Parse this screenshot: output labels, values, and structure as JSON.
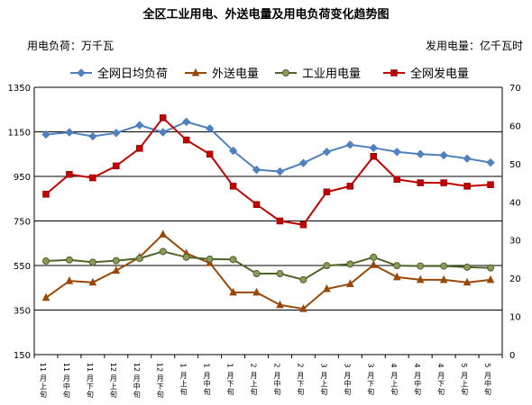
{
  "chart_data": {
    "type": "line",
    "title": "全区工业用电、外送电量及用电负荷变化趋势图",
    "left_axis_label": "用电负荷：万千瓦",
    "right_axis_label": "发用电量：亿千瓦时",
    "categories": [
      "11月上旬",
      "11月中旬",
      "11月下旬",
      "12月上旬",
      "12月中旬",
      "12月下旬",
      "1月上旬",
      "1月中旬",
      "1月下旬",
      "2月上旬",
      "2月中旬",
      "2月下旬",
      "3月上旬",
      "3月中旬",
      "3月下旬",
      "4月上旬",
      "4月中旬",
      "4月下旬",
      "5月上旬",
      "5月中旬"
    ],
    "category_lines": [
      [
        "11",
        "月",
        "上",
        "旬"
      ],
      [
        "11",
        "月",
        "中",
        "旬"
      ],
      [
        "11",
        "月",
        "下",
        "旬"
      ],
      [
        "12",
        "月",
        "上",
        "旬"
      ],
      [
        "12",
        "月",
        "中",
        "旬"
      ],
      [
        "12",
        "月",
        "下",
        "旬"
      ],
      [
        "1",
        "月",
        "上",
        "旬"
      ],
      [
        "1",
        "月",
        "中",
        "旬"
      ],
      [
        "1",
        "月",
        "下",
        "旬"
      ],
      [
        "2",
        "月",
        "上",
        "旬"
      ],
      [
        "2",
        "月",
        "中",
        "旬"
      ],
      [
        "2",
        "月",
        "下",
        "旬"
      ],
      [
        "3",
        "月",
        "上",
        "旬"
      ],
      [
        "3",
        "月",
        "中",
        "旬"
      ],
      [
        "3",
        "月",
        "下",
        "旬"
      ],
      [
        "4",
        "月",
        "上",
        "旬"
      ],
      [
        "4",
        "月",
        "中",
        "旬"
      ],
      [
        "4",
        "月",
        "下",
        "旬"
      ],
      [
        "5",
        "月",
        "上",
        "旬"
      ],
      [
        "5",
        "月",
        "中",
        "旬"
      ]
    ],
    "y_left": {
      "min": 150,
      "max": 1350,
      "ticks": [
        150,
        350,
        550,
        750,
        950,
        1150,
        1350
      ]
    },
    "y_right": {
      "min": 0,
      "max": 70,
      "ticks": [
        0,
        10,
        20,
        30,
        40,
        50,
        60,
        70
      ]
    },
    "grid": true,
    "legend_position": "top",
    "series": [
      {
        "name": "全网日均负荷",
        "axis": "left",
        "color": "#4f81bd",
        "marker": "diamond",
        "values": [
          1138,
          1148,
          1130,
          1145,
          1180,
          1148,
          1195,
          1165,
          1065,
          980,
          972,
          1010,
          1060,
          1092,
          1078,
          1060,
          1050,
          1045,
          1030,
          1012
        ]
      },
      {
        "name": "外送电量",
        "axis": "right",
        "color": "#984807",
        "marker": "triangle",
        "values": [
          14.9,
          19.3,
          18.9,
          22.0,
          25.5,
          31.5,
          26.5,
          24.0,
          16.3,
          16.3,
          13.0,
          12.0,
          17.2,
          18.5,
          23.5,
          20.3,
          19.6,
          19.6,
          18.9,
          19.6
        ]
      },
      {
        "name": "工业用电量",
        "axis": "right",
        "color": "#4f6228",
        "marker": "circle",
        "values": [
          24.5,
          24.8,
          24.2,
          24.6,
          25.2,
          27.0,
          25.5,
          25.0,
          24.9,
          21.2,
          21.2,
          19.6,
          23.3,
          23.7,
          25.5,
          23.3,
          23.2,
          23.2,
          22.9,
          22.7
        ]
      },
      {
        "name": "全网发电量",
        "axis": "right",
        "color": "#c00000",
        "marker": "square",
        "values": [
          42.0,
          47.2,
          46.3,
          49.4,
          54.0,
          62.0,
          56.2,
          52.5,
          44.1,
          39.3,
          35.0,
          34.0,
          42.6,
          44.1,
          51.9,
          45.9,
          45.0,
          45.0,
          44.1,
          44.5
        ]
      }
    ]
  }
}
